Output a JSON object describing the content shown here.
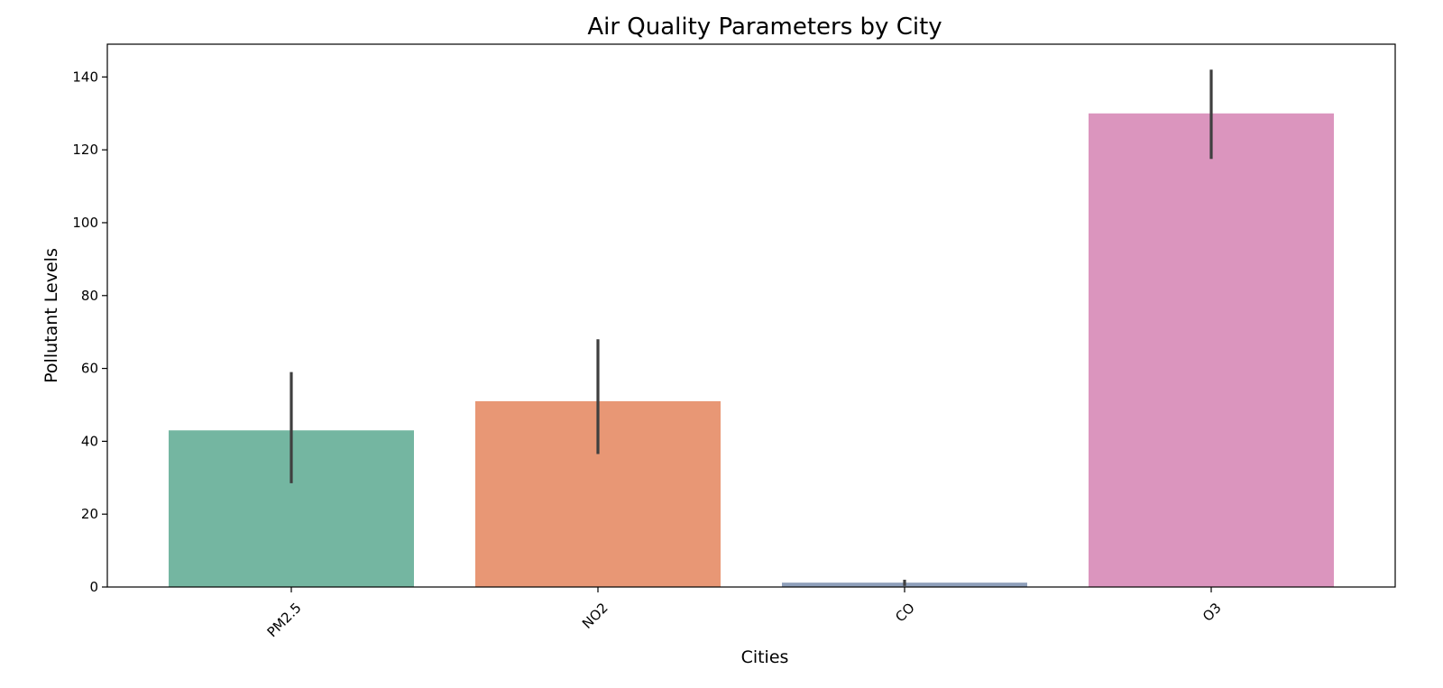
{
  "chart_data": {
    "type": "bar",
    "title": "Air Quality Parameters by City",
    "xlabel": "Cities",
    "ylabel": "Pollutant Levels",
    "categories": [
      "PM2.5",
      "NO2",
      "CO",
      "O3"
    ],
    "values": [
      43,
      51,
      1.2,
      130
    ],
    "error_low": [
      28.5,
      36.5,
      0.3,
      117.5
    ],
    "error_high": [
      59,
      68,
      2.0,
      142
    ],
    "colors": [
      "#74b6a1",
      "#e89775",
      "#8fa0bb",
      "#db95be"
    ],
    "error_color": "#3f3f3f",
    "ylim": [
      0,
      149
    ],
    "yticks": [
      0,
      20,
      40,
      60,
      80,
      100,
      120,
      140
    ],
    "grid": false,
    "xtick_rotation": -45
  }
}
